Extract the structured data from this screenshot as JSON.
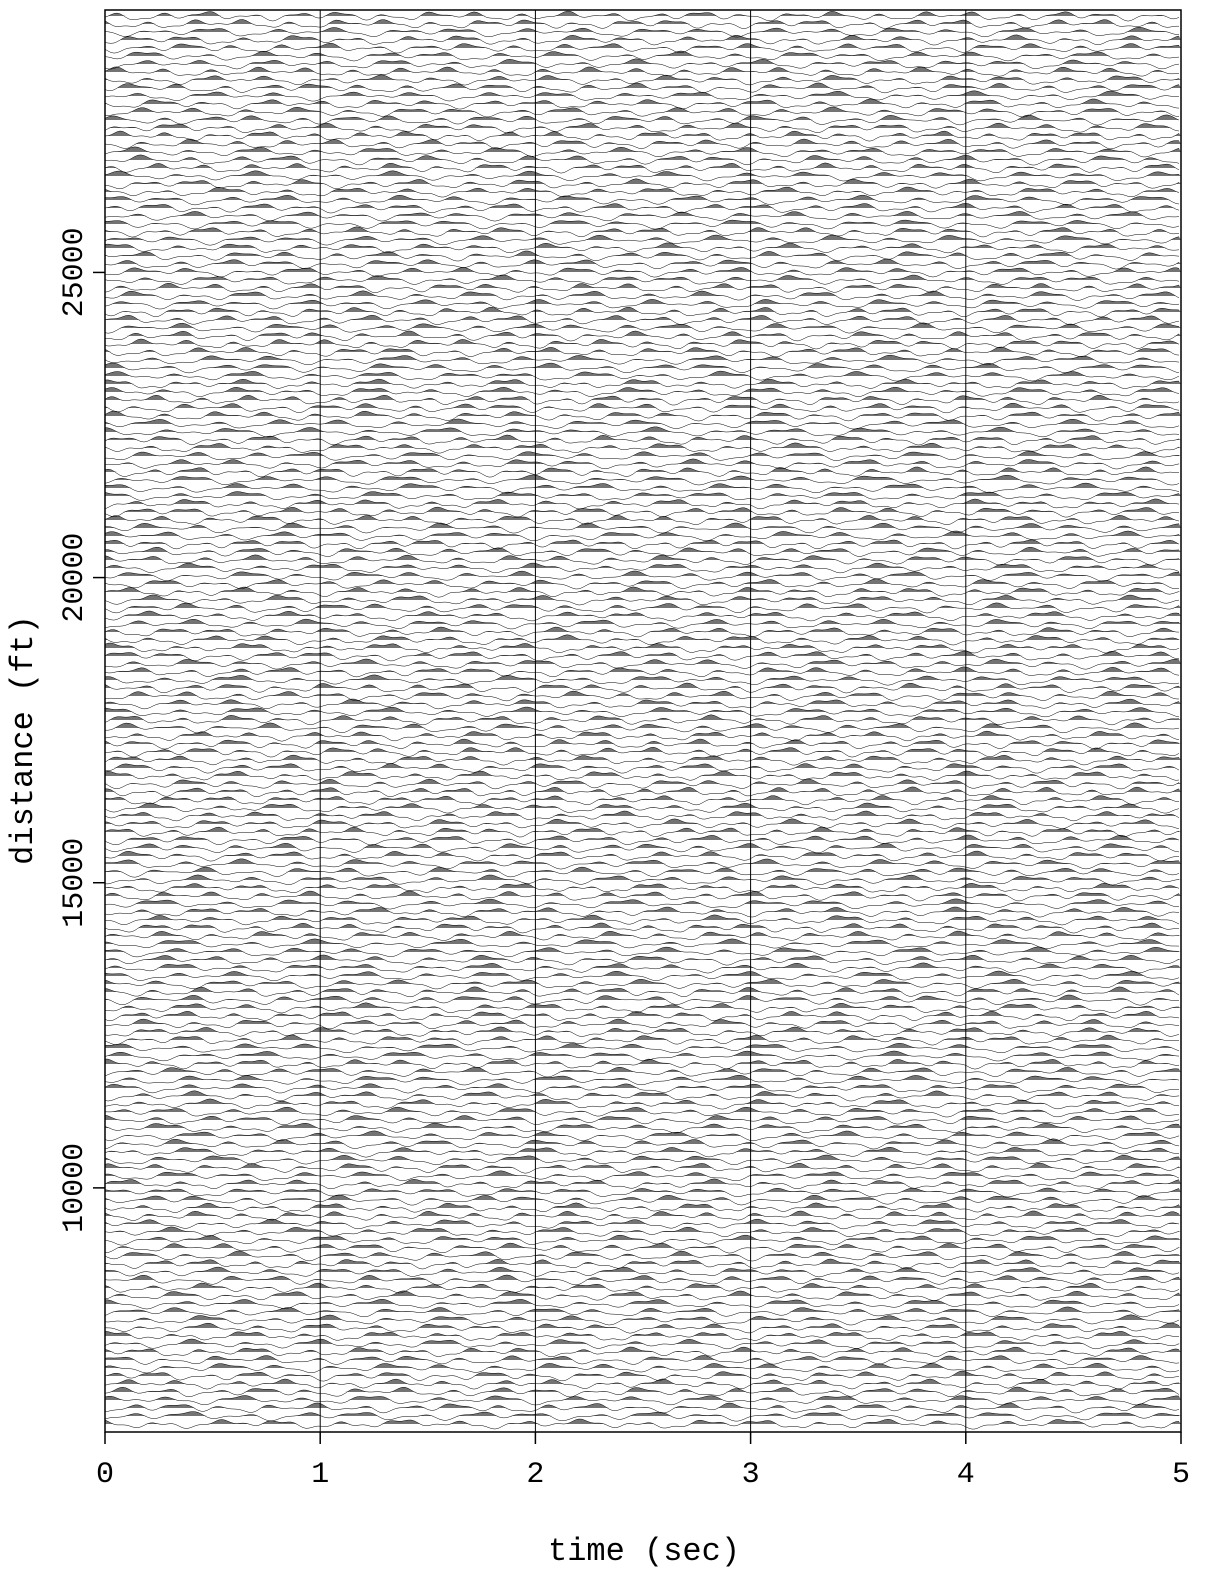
{
  "chart_data": {
    "type": "wiggle",
    "x_label": "time (sec)",
    "y_label": "distance (ft)",
    "xlim": [
      0,
      5
    ],
    "xticks": [
      0,
      1,
      2,
      3,
      4,
      5
    ],
    "ylim": [
      6000,
      29300
    ],
    "yticks": [
      10000,
      15000,
      20000,
      25000
    ],
    "grid": true,
    "color": "#000000"
  }
}
